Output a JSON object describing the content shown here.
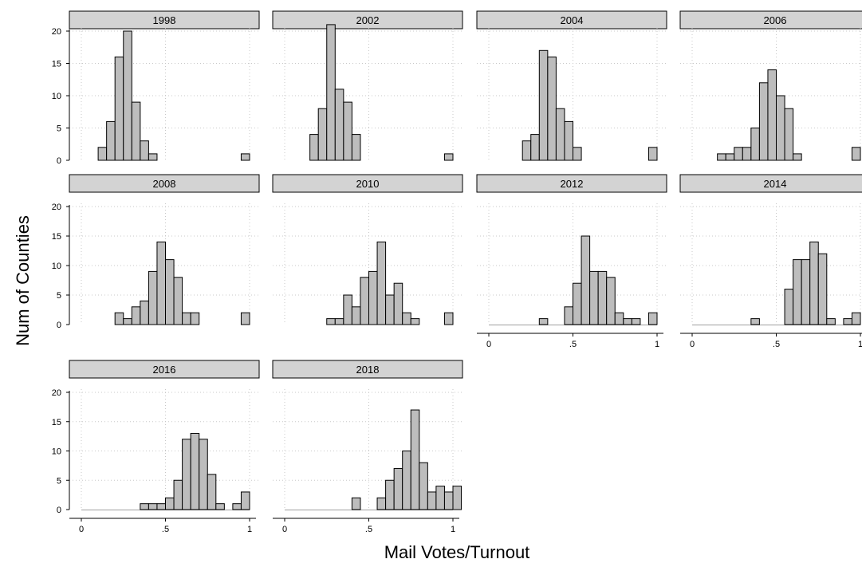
{
  "chart_data": {
    "type": "bar",
    "subtype": "faceted-histogram",
    "xlabel": "Mail Votes/Turnout",
    "ylabel": "Num of Counties",
    "ylim": [
      0,
      20
    ],
    "yticks": [
      "0",
      "5",
      "10",
      "15",
      "20"
    ],
    "xlim": [
      0,
      1
    ],
    "xticks": [
      "0",
      ".5",
      "1"
    ],
    "bin_width": 0.05,
    "grid": true,
    "colors": {
      "bar_fill": "#bdbdbd",
      "bar_stroke": "#000000",
      "header_fill": "#d3d3d3"
    },
    "panels": [
      {
        "title": "1998",
        "bins": [
          {
            "x": 0.1,
            "y": 2
          },
          {
            "x": 0.15,
            "y": 6
          },
          {
            "x": 0.2,
            "y": 16
          },
          {
            "x": 0.25,
            "y": 20
          },
          {
            "x": 0.3,
            "y": 9
          },
          {
            "x": 0.35,
            "y": 3
          },
          {
            "x": 0.4,
            "y": 1
          },
          {
            "x": 0.95,
            "y": 1
          }
        ]
      },
      {
        "title": "2002",
        "bins": [
          {
            "x": 0.15,
            "y": 4
          },
          {
            "x": 0.2,
            "y": 8
          },
          {
            "x": 0.25,
            "y": 21
          },
          {
            "x": 0.3,
            "y": 11
          },
          {
            "x": 0.35,
            "y": 9
          },
          {
            "x": 0.4,
            "y": 4
          },
          {
            "x": 0.95,
            "y": 1
          }
        ]
      },
      {
        "title": "2004",
        "bins": [
          {
            "x": 0.2,
            "y": 3
          },
          {
            "x": 0.25,
            "y": 4
          },
          {
            "x": 0.3,
            "y": 17
          },
          {
            "x": 0.35,
            "y": 16
          },
          {
            "x": 0.4,
            "y": 8
          },
          {
            "x": 0.45,
            "y": 6
          },
          {
            "x": 0.5,
            "y": 2
          },
          {
            "x": 0.95,
            "y": 2
          }
        ]
      },
      {
        "title": "2006",
        "bins": [
          {
            "x": 0.15,
            "y": 1
          },
          {
            "x": 0.2,
            "y": 1
          },
          {
            "x": 0.25,
            "y": 2
          },
          {
            "x": 0.3,
            "y": 2
          },
          {
            "x": 0.35,
            "y": 5
          },
          {
            "x": 0.4,
            "y": 12
          },
          {
            "x": 0.45,
            "y": 14
          },
          {
            "x": 0.5,
            "y": 10
          },
          {
            "x": 0.55,
            "y": 8
          },
          {
            "x": 0.6,
            "y": 1
          },
          {
            "x": 0.95,
            "y": 2
          }
        ]
      },
      {
        "title": "2008",
        "bins": [
          {
            "x": 0.2,
            "y": 2
          },
          {
            "x": 0.25,
            "y": 1
          },
          {
            "x": 0.3,
            "y": 3
          },
          {
            "x": 0.35,
            "y": 4
          },
          {
            "x": 0.4,
            "y": 9
          },
          {
            "x": 0.45,
            "y": 14
          },
          {
            "x": 0.5,
            "y": 11
          },
          {
            "x": 0.55,
            "y": 8
          },
          {
            "x": 0.6,
            "y": 2
          },
          {
            "x": 0.65,
            "y": 2
          },
          {
            "x": 0.95,
            "y": 2
          }
        ]
      },
      {
        "title": "2010",
        "bins": [
          {
            "x": 0.25,
            "y": 1
          },
          {
            "x": 0.3,
            "y": 1
          },
          {
            "x": 0.35,
            "y": 5
          },
          {
            "x": 0.4,
            "y": 3
          },
          {
            "x": 0.45,
            "y": 8
          },
          {
            "x": 0.5,
            "y": 9
          },
          {
            "x": 0.55,
            "y": 14
          },
          {
            "x": 0.6,
            "y": 5
          },
          {
            "x": 0.65,
            "y": 7
          },
          {
            "x": 0.7,
            "y": 2
          },
          {
            "x": 0.75,
            "y": 1
          },
          {
            "x": 0.95,
            "y": 2
          }
        ]
      },
      {
        "title": "2012",
        "bins": [
          {
            "x": 0.0,
            "y": 0
          },
          {
            "x": 0.3,
            "y": 1
          },
          {
            "x": 0.45,
            "y": 3
          },
          {
            "x": 0.5,
            "y": 7
          },
          {
            "x": 0.55,
            "y": 15
          },
          {
            "x": 0.6,
            "y": 9
          },
          {
            "x": 0.65,
            "y": 9
          },
          {
            "x": 0.7,
            "y": 8
          },
          {
            "x": 0.75,
            "y": 2
          },
          {
            "x": 0.8,
            "y": 1
          },
          {
            "x": 0.85,
            "y": 1
          },
          {
            "x": 0.95,
            "y": 2
          }
        ]
      },
      {
        "title": "2014",
        "bins": [
          {
            "x": 0.35,
            "y": 1
          },
          {
            "x": 0.55,
            "y": 6
          },
          {
            "x": 0.6,
            "y": 11
          },
          {
            "x": 0.65,
            "y": 11
          },
          {
            "x": 0.7,
            "y": 14
          },
          {
            "x": 0.75,
            "y": 12
          },
          {
            "x": 0.8,
            "y": 1
          },
          {
            "x": 0.9,
            "y": 1
          },
          {
            "x": 0.95,
            "y": 2
          }
        ]
      },
      {
        "title": "2016",
        "bins": [
          {
            "x": 0.35,
            "y": 1
          },
          {
            "x": 0.4,
            "y": 1
          },
          {
            "x": 0.45,
            "y": 1
          },
          {
            "x": 0.5,
            "y": 2
          },
          {
            "x": 0.55,
            "y": 5
          },
          {
            "x": 0.6,
            "y": 12
          },
          {
            "x": 0.65,
            "y": 13
          },
          {
            "x": 0.7,
            "y": 12
          },
          {
            "x": 0.75,
            "y": 6
          },
          {
            "x": 0.8,
            "y": 1
          },
          {
            "x": 0.9,
            "y": 1
          },
          {
            "x": 0.95,
            "y": 3
          }
        ]
      },
      {
        "title": "2018",
        "bins": [
          {
            "x": 0.4,
            "y": 2
          },
          {
            "x": 0.55,
            "y": 2
          },
          {
            "x": 0.6,
            "y": 5
          },
          {
            "x": 0.65,
            "y": 7
          },
          {
            "x": 0.7,
            "y": 10
          },
          {
            "x": 0.75,
            "y": 17
          },
          {
            "x": 0.8,
            "y": 8
          },
          {
            "x": 0.85,
            "y": 3
          },
          {
            "x": 0.9,
            "y": 4
          },
          {
            "x": 0.95,
            "y": 3
          },
          {
            "x": 1.0,
            "y": 4
          }
        ]
      }
    ]
  }
}
